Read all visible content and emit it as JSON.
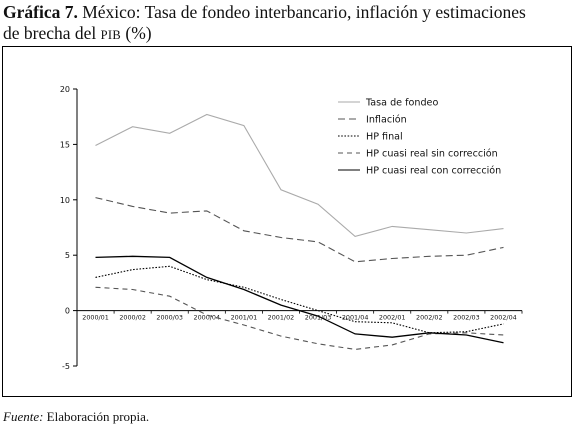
{
  "title": {
    "prefix": "Gráfica 7.",
    "line1": " México: Tasa de fondeo interbancario, inflación y estimaciones",
    "line2a": "de brecha del ",
    "pib": "PIB",
    "line2b": " (%)"
  },
  "source": {
    "label": "Fuente:",
    "text": " Elaboración propia."
  },
  "chart_data": {
    "type": "line",
    "ylim": [
      -5,
      20
    ],
    "yticks": [
      -5,
      0,
      5,
      10,
      15,
      20
    ],
    "categories": [
      "2000/01",
      "2000/02",
      "2000/03",
      "2000/04",
      "2001/01",
      "2001/02",
      "2001/03",
      "2001/04",
      "2002/01",
      "2002/02",
      "2002/03",
      "2002/04"
    ],
    "legend_position": "top-right",
    "grid": false,
    "series": [
      {
        "name": "Tasa de fondeo",
        "style": "solid",
        "color": "#aaaaaa",
        "values": [
          14.9,
          16.6,
          16.0,
          17.7,
          16.7,
          10.9,
          9.6,
          6.7,
          7.6,
          7.3,
          7.0,
          7.4
        ]
      },
      {
        "name": "Inflación",
        "style": "longdash",
        "color": "#555555",
        "values": [
          10.2,
          9.4,
          8.8,
          9.0,
          7.2,
          6.6,
          6.2,
          4.4,
          4.7,
          4.9,
          5.0,
          5.7
        ]
      },
      {
        "name": "HP final",
        "style": "dotted",
        "color": "#000000",
        "values": [
          3.0,
          3.7,
          4.0,
          2.8,
          2.1,
          1.0,
          0.0,
          -1.0,
          -1.1,
          -2.0,
          -1.9,
          -1.2
        ]
      },
      {
        "name": "HP cuasi real sin corrección",
        "style": "dashed",
        "color": "#555555",
        "values": [
          2.1,
          1.9,
          1.3,
          -0.4,
          -1.3,
          -2.3,
          -3.0,
          -3.5,
          -3.1,
          -2.1,
          -2.0,
          -2.2
        ]
      },
      {
        "name": "HP cuasi real con corrección",
        "style": "solid",
        "color": "#000000",
        "values": [
          4.8,
          4.9,
          4.8,
          3.0,
          1.9,
          0.5,
          -0.5,
          -2.1,
          -2.4,
          -2.0,
          -2.2,
          -2.9
        ]
      }
    ]
  }
}
